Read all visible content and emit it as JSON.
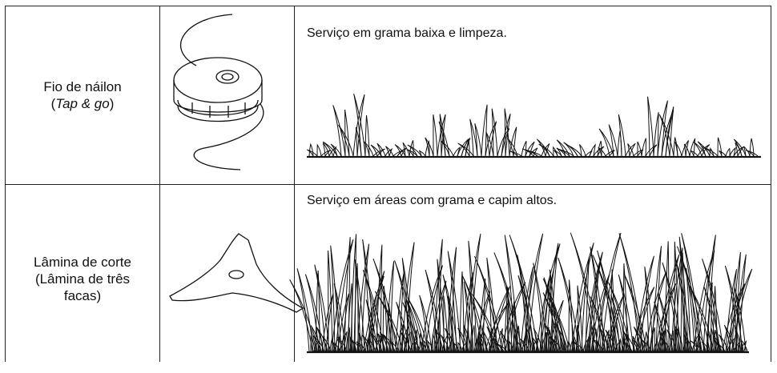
{
  "table": {
    "rows": [
      {
        "name": "Fio de náilon",
        "name_parts": [
          "(",
          "Tap & go",
          ")"
        ],
        "description": "Serviço em grama baixa e limpeza."
      },
      {
        "name": "Lâmina de corte",
        "name_parts": [
          "(Lâmina de três facas)"
        ],
        "description": "Serviço em áreas com grama e capim altos."
      }
    ]
  }
}
